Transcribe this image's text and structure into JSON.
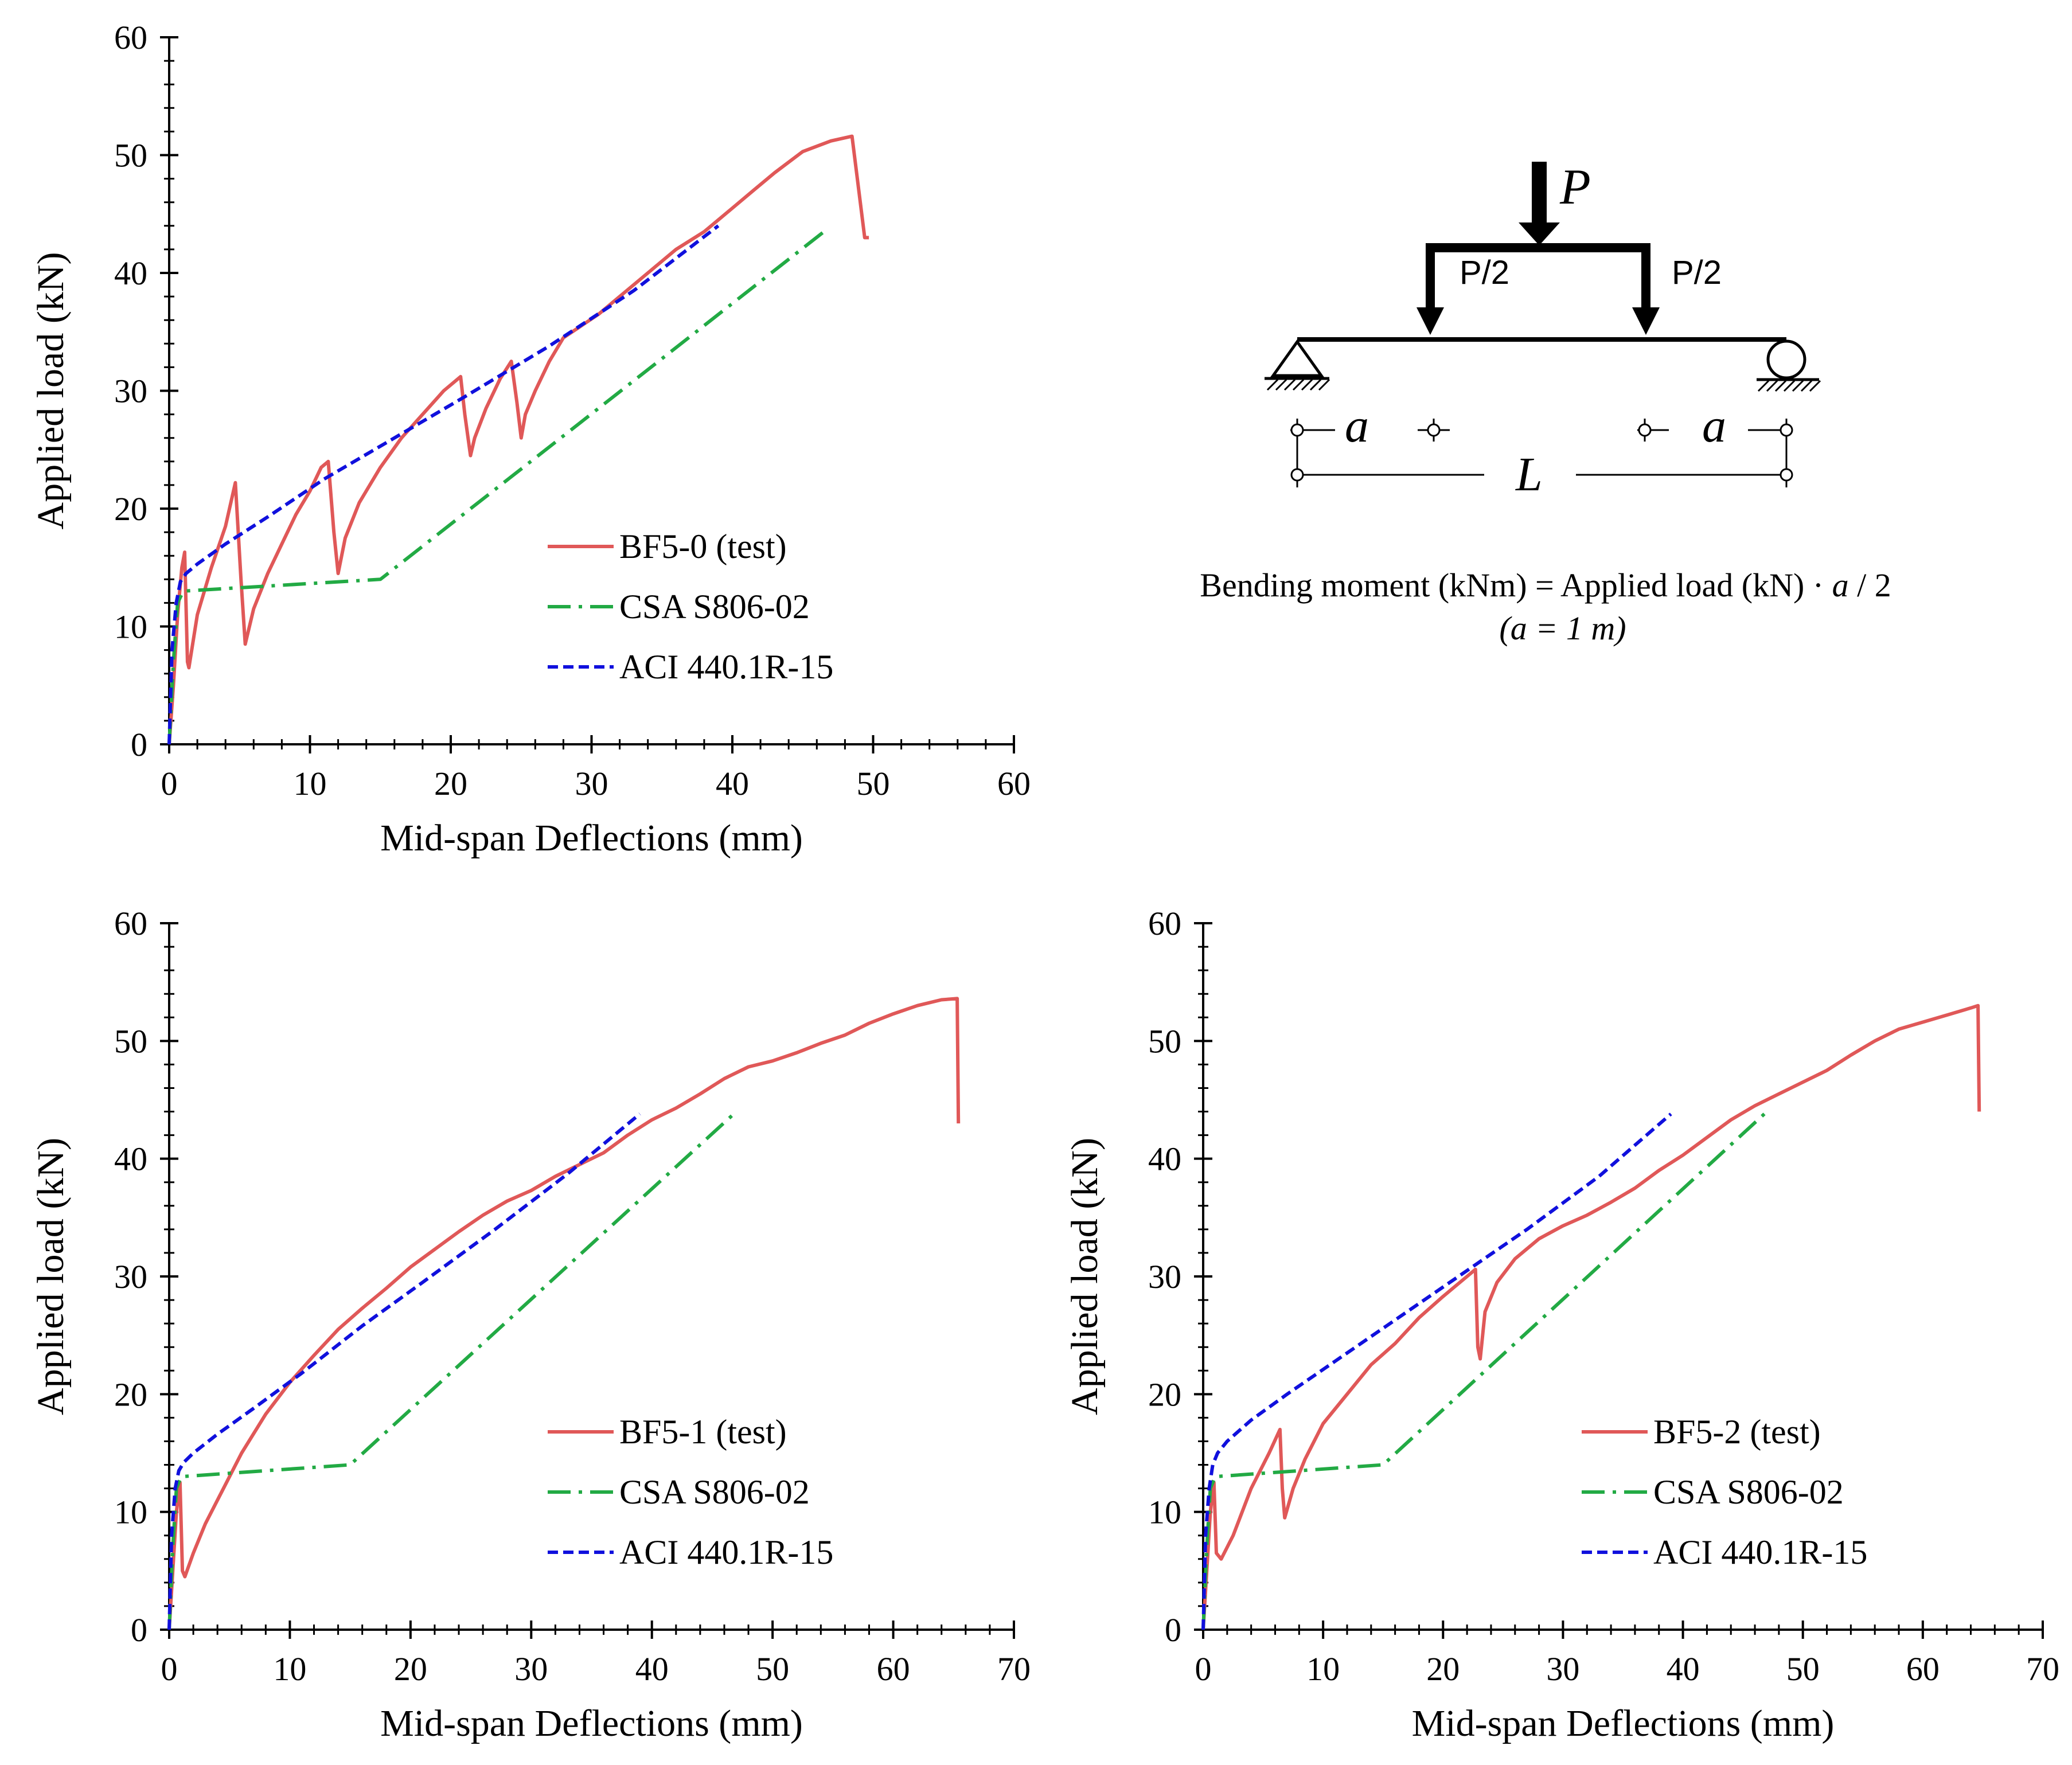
{
  "chart_data": [
    {
      "type": "line",
      "xlabel": "Mid-span Deflections (mm)",
      "ylabel": "Applied load (kN)",
      "xlim": [
        0,
        60
      ],
      "ylim": [
        0,
        60
      ],
      "xticks": [
        0,
        10,
        20,
        30,
        40,
        50,
        60
      ],
      "yticks": [
        0,
        10,
        20,
        30,
        40,
        50,
        60
      ],
      "legend_position": "center-right",
      "series": [
        {
          "name": "BF5-0 (test)",
          "color": "#e05858",
          "style": "solid",
          "x": [
            0,
            0.3,
            0.6,
            0.9,
            1.1,
            1.3,
            1.4,
            2.0,
            3.0,
            4.0,
            4.7,
            5.1,
            5.4,
            6.0,
            7.0,
            8.0,
            9.0,
            10.0,
            10.8,
            11.3,
            11.7,
            12.0,
            12.5,
            13.5,
            15.0,
            16.5,
            18.0,
            19.5,
            20.7,
            21.0,
            21.4,
            21.7,
            22.5,
            23.5,
            24.3,
            24.7,
            25.0,
            25.3,
            26.0,
            27.0,
            28.0,
            29.0,
            30.5,
            32.0,
            34.0,
            36.0,
            38.0,
            40.0,
            41.5,
            43.0,
            45.0,
            47.0,
            48.5,
            49.4,
            49.7
          ],
          "y": [
            0,
            5,
            11,
            15,
            16.3,
            7,
            6.5,
            11,
            15,
            18.5,
            22.2,
            14,
            8.5,
            11.5,
            14.5,
            17,
            19.5,
            21.5,
            23.5,
            24,
            18,
            14.5,
            17.5,
            20.5,
            23.5,
            26,
            28,
            30,
            31.2,
            28,
            24.5,
            26,
            28.5,
            31,
            32.5,
            29,
            26,
            28,
            30,
            32.5,
            34.5,
            35.3,
            36.5,
            38,
            40,
            42,
            43.5,
            45.5,
            47,
            48.5,
            50.3,
            51.2,
            51.6,
            43,
            43
          ]
        },
        {
          "name": "CSA S806-02",
          "color": "#22aa44",
          "style": "dashdot",
          "x": [
            0,
            0.3,
            0.6,
            1.0,
            15.0,
            46.5
          ],
          "y": [
            0,
            7,
            12,
            13,
            14,
            43.5
          ]
        },
        {
          "name": "ACI 440.1R-15",
          "color": "#1010dd",
          "style": "dashed",
          "x": [
            0,
            0.2,
            0.5,
            0.8,
            1.2,
            2.0,
            4.0,
            7.0,
            11.0,
            16.0,
            21.0,
            27.0,
            33.0,
            39.0
          ],
          "y": [
            0,
            8,
            12,
            13.8,
            14.5,
            15.3,
            17,
            19.3,
            22.5,
            26,
            29.5,
            33.8,
            38.5,
            44
          ]
        }
      ]
    },
    {
      "type": "line",
      "xlabel": "Mid-span Deflections (mm)",
      "ylabel": "Applied load (kN)",
      "xlim": [
        0,
        70
      ],
      "ylim": [
        0,
        60
      ],
      "xticks": [
        0,
        10,
        20,
        30,
        40,
        50,
        60,
        70
      ],
      "yticks": [
        0,
        10,
        20,
        30,
        40,
        50,
        60
      ],
      "legend_position": "center-right",
      "series": [
        {
          "name": "BF5-1 (test)",
          "color": "#e05858",
          "style": "solid",
          "x": [
            0,
            0.3,
            0.6,
            0.9,
            1.1,
            1.3,
            2.0,
            3.0,
            4.5,
            6.0,
            8.0,
            10.0,
            12.0,
            14.0,
            16.0,
            18.0,
            20.0,
            22.0,
            24.0,
            26.0,
            28.0,
            30.0,
            32.0,
            34.0,
            36.0,
            38.0,
            40.0,
            42.0,
            44.0,
            46.0,
            48.0,
            50.0,
            52.0,
            54.0,
            56.0,
            58.0,
            60.0,
            62.0,
            64.0,
            65.3,
            65.4
          ],
          "y": [
            0,
            5,
            10,
            12.5,
            5,
            4.5,
            6.5,
            9,
            12,
            15,
            18.3,
            21,
            23.3,
            25.5,
            27.3,
            29,
            30.8,
            32.3,
            33.8,
            35.2,
            36.4,
            37.3,
            38.5,
            39.5,
            40.5,
            42,
            43.3,
            44.3,
            45.5,
            46.8,
            47.8,
            48.3,
            49,
            49.8,
            50.5,
            51.5,
            52.3,
            53,
            53.5,
            53.6,
            43
          ]
        },
        {
          "name": "CSA S806-02",
          "color": "#22aa44",
          "style": "dashdot",
          "x": [
            0,
            0.3,
            0.6,
            1.0,
            15.0,
            47.0
          ],
          "y": [
            0,
            7,
            12,
            13,
            14,
            44
          ]
        },
        {
          "name": "ACI 440.1R-15",
          "color": "#1010dd",
          "style": "dashed",
          "x": [
            0,
            0.2,
            0.5,
            0.8,
            1.2,
            2.0,
            4.0,
            7.0,
            11.0,
            16.0,
            21.0,
            27.0,
            33.0,
            39.0
          ],
          "y": [
            0,
            8,
            12,
            13.5,
            14.2,
            15,
            16.6,
            18.8,
            21.8,
            25.8,
            29.5,
            34,
            38.7,
            43.8
          ]
        }
      ]
    },
    {
      "type": "line",
      "xlabel": "Mid-span Deflections (mm)",
      "ylabel": "Applied load (kN)",
      "xlim": [
        0,
        70
      ],
      "ylim": [
        0,
        60
      ],
      "xticks": [
        0,
        10,
        20,
        30,
        40,
        50,
        60,
        70
      ],
      "yticks": [
        0,
        10,
        20,
        30,
        40,
        50,
        60
      ],
      "legend_position": "center-right",
      "series": [
        {
          "name": "BF5-2 (test)",
          "color": "#e05858",
          "style": "solid",
          "x": [
            0,
            0.3,
            0.6,
            0.9,
            1.1,
            1.5,
            2.5,
            4.0,
            5.5,
            6.4,
            6.6,
            6.8,
            7.5,
            8.5,
            10.0,
            12.0,
            14.0,
            16.0,
            18.0,
            20.0,
            22.0,
            22.7,
            22.9,
            23.1,
            23.5,
            24.5,
            26.0,
            28.0,
            30.0,
            32.0,
            34.0,
            36.0,
            38.0,
            40.0,
            42.0,
            44.0,
            46.0,
            48.0,
            50.0,
            52.0,
            54.0,
            56.0,
            58.0,
            60.0,
            62.0,
            64.0,
            64.6,
            64.7
          ],
          "y": [
            0,
            5,
            10,
            12.5,
            6.5,
            6,
            8,
            12,
            15,
            17,
            12,
            9.5,
            12,
            14.5,
            17.5,
            20,
            22.5,
            24.3,
            26.5,
            28.3,
            30,
            30.6,
            24,
            23,
            27,
            29.5,
            31.5,
            33.2,
            34.3,
            35.2,
            36.3,
            37.5,
            39,
            40.3,
            41.8,
            43.3,
            44.5,
            45.5,
            46.5,
            47.5,
            48.8,
            50,
            51,
            51.6,
            52.2,
            52.8,
            53,
            44
          ]
        },
        {
          "name": "CSA S806-02",
          "color": "#22aa44",
          "style": "dashdot",
          "x": [
            0,
            0.3,
            0.6,
            1.0,
            15.0,
            47.0
          ],
          "y": [
            0,
            7,
            12,
            13,
            14,
            44
          ]
        },
        {
          "name": "ACI 440.1R-15",
          "color": "#1010dd",
          "style": "dashed",
          "x": [
            0,
            0.2,
            0.5,
            0.8,
            1.2,
            2.0,
            4.0,
            7.0,
            11.0,
            16.0,
            21.0,
            27.0,
            33.0,
            39.0
          ],
          "y": [
            0,
            8,
            12,
            14,
            15,
            16,
            17.8,
            20,
            22.8,
            26.3,
            29.8,
            34,
            38.5,
            43.8
          ]
        }
      ]
    }
  ],
  "diagram": {
    "load_label": "P",
    "left_point_load_label": "P/2",
    "right_point_load_label": "P/2",
    "left_shear_span_label": "a",
    "right_shear_span_label": "a",
    "span_label": "L",
    "moment_equation_prefix": "Bending moment (kNm) = Applied load (kN) · ",
    "moment_equation_var": "a",
    "moment_equation_suffix": " / 2",
    "shear_span_value": "(a = 1 m)"
  }
}
